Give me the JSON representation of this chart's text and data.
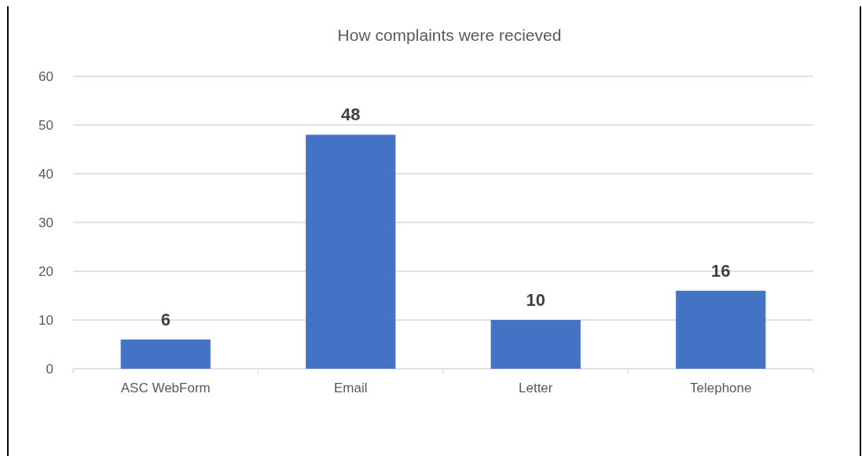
{
  "chart_data": {
    "type": "bar",
    "title": "How complaints were recieved",
    "categories": [
      "ASC WebForm",
      "Email",
      "Letter",
      "Telephone"
    ],
    "values": [
      6,
      48,
      10,
      16
    ],
    "color": "#4472c4",
    "ylim": [
      0,
      60
    ],
    "yticks": [
      0,
      10,
      20,
      30,
      40,
      50,
      60
    ],
    "grid": "y",
    "data_labels": true
  }
}
